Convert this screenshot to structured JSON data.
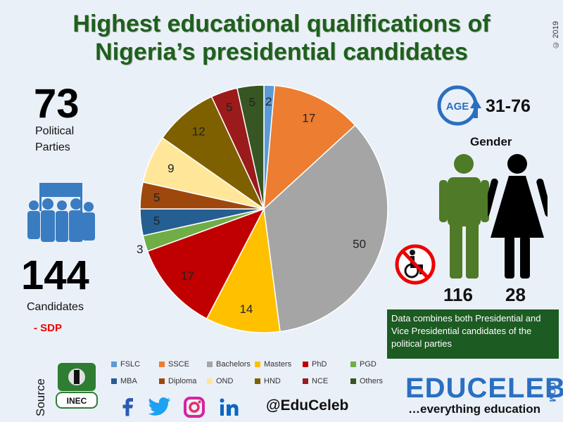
{
  "title_line1": "Highest educational qualifications of",
  "title_line2": "Nigeria’s presidential candidates",
  "copyright": "© 2019",
  "parties": {
    "count": "73",
    "label_line1": "Political",
    "label_line2": "Parties"
  },
  "candidates": {
    "count": "144",
    "label": "Candidates",
    "note": "- SDP"
  },
  "age": {
    "badge": "AGE",
    "range": "31-76"
  },
  "gender": {
    "title": "Gender",
    "male": "116",
    "female": "28"
  },
  "note": "Data combines both Presidential and Vice Presidential candidates of the political parties",
  "source_label": "Source",
  "inec_label": "INEC",
  "social_handle": "@EduCeleb",
  "brand": {
    "name": "EDUCELEB",
    "suffix": ".COM",
    "tagline": "…everything education"
  },
  "colors": {
    "title": "#1f5f1f",
    "note_bg": "#1c5b22",
    "brand": "#2a6fc0",
    "silhouette": "#3a7cc1",
    "male": "#4f7a28",
    "female": "#000000"
  },
  "chart_data": {
    "type": "pie",
    "title": "",
    "legend_position": "bottom",
    "categories": [
      "FSLC",
      "SSCE",
      "Bachelors",
      "Masters",
      "PhD",
      "PGD",
      "MBA",
      "Diploma",
      "OND",
      "HND",
      "NCE",
      "Others"
    ],
    "values": [
      2,
      17,
      50,
      14,
      17,
      3,
      5,
      5,
      9,
      12,
      5,
      5
    ],
    "colors": [
      "#5b9bd5",
      "#ed7d31",
      "#a5a5a5",
      "#ffc000",
      "#c00000",
      "#70ad47",
      "#255e91",
      "#9e480e",
      "#ffe699",
      "#7f6000",
      "#9b1b1b",
      "#375623"
    ],
    "label_colors": [
      "#222",
      "#222",
      "#222",
      "#222",
      "#222",
      "#222",
      "#222",
      "#222",
      "#222",
      "#222",
      "#222",
      "#222"
    ]
  }
}
